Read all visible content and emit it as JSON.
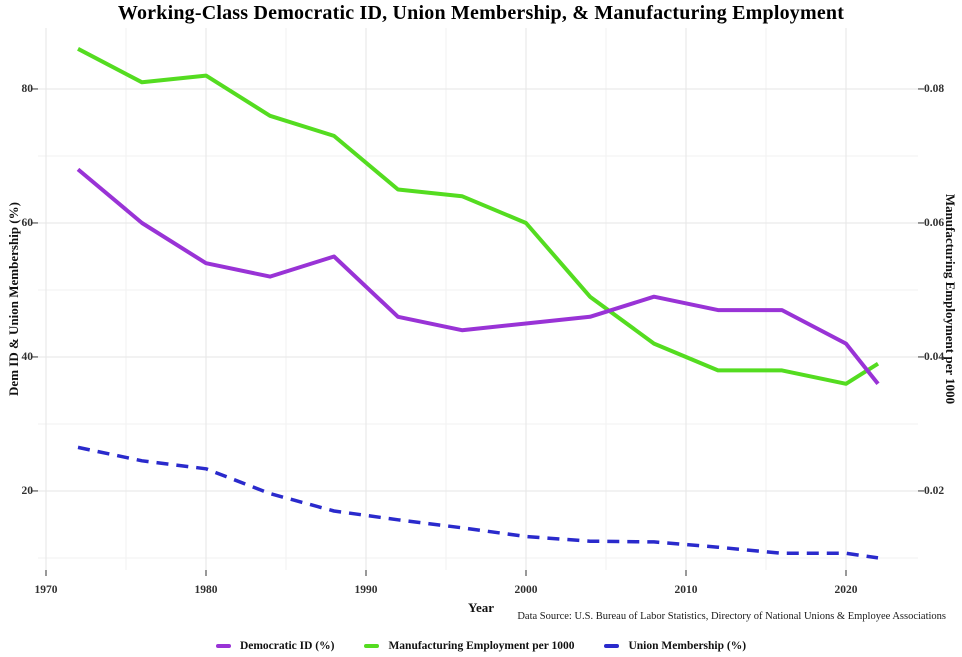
{
  "title": "Working-Class Democratic ID, Union Membership, & Manufacturing Employment",
  "caption": "Data Source: U.S. Bureau of Labor Statistics, Directory of National Unions & Employee Associations",
  "chart_data": {
    "type": "line",
    "x": [
      1972,
      1976,
      1980,
      1984,
      1988,
      1992,
      1996,
      2000,
      2004,
      2008,
      2012,
      2016,
      2020,
      2022
    ],
    "series": [
      {
        "name": "Democratic ID (%)",
        "axis": "left",
        "color": "#9933d6",
        "dashed": false,
        "values": [
          68,
          60,
          54,
          52,
          55,
          46,
          44,
          45,
          46,
          49,
          47,
          47,
          42,
          36
        ]
      },
      {
        "name": "Manufacturing Employment per 1000",
        "axis": "right",
        "color": "#54dc20",
        "dashed": false,
        "values": [
          0.086,
          0.081,
          0.082,
          0.076,
          0.073,
          0.065,
          0.064,
          0.06,
          0.049,
          0.042,
          0.038,
          0.038,
          0.036,
          0.039
        ]
      },
      {
        "name": "Union Membership (%)",
        "axis": "left",
        "color": "#2a2acc",
        "dashed": true,
        "values": [
          26.5,
          24.5,
          23.3,
          19.6,
          17.0,
          15.7,
          14.5,
          13.2,
          12.5,
          12.4,
          11.6,
          10.7,
          10.7,
          10.0
        ]
      }
    ],
    "x_axis": {
      "label": "Year",
      "ticks": [
        1970,
        1980,
        1990,
        2000,
        2010,
        2020
      ],
      "minor_step": 5,
      "xlim": [
        1969.5,
        2024.5
      ]
    },
    "left_axis": {
      "label": "Dem ID & Union Membership (%)",
      "ticks": [
        20,
        40,
        60,
        80
      ],
      "minor_ticks": [
        10,
        30,
        50,
        70
      ],
      "ylim": [
        8.2,
        89.1
      ]
    },
    "right_axis": {
      "label": "Manufacturing Employment per 1000",
      "ticks": [
        "0.02",
        "0.04",
        "0.06",
        "0.08"
      ],
      "tick_values": [
        0.02,
        0.04,
        0.06,
        0.08
      ],
      "scale_factor_vs_left": 0.001,
      "ylim": [
        0.0082,
        0.0891
      ]
    },
    "grid": {
      "major_color": "#e5e5e5",
      "minor_color": "#f2f2f2",
      "background": "#ffffff"
    },
    "legend_position": "bottom-center"
  },
  "legend": {
    "items": [
      {
        "label": "Democratic ID (%)"
      },
      {
        "label": "Manufacturing Employment per 1000"
      },
      {
        "label": "Union Membership (%)"
      }
    ]
  }
}
